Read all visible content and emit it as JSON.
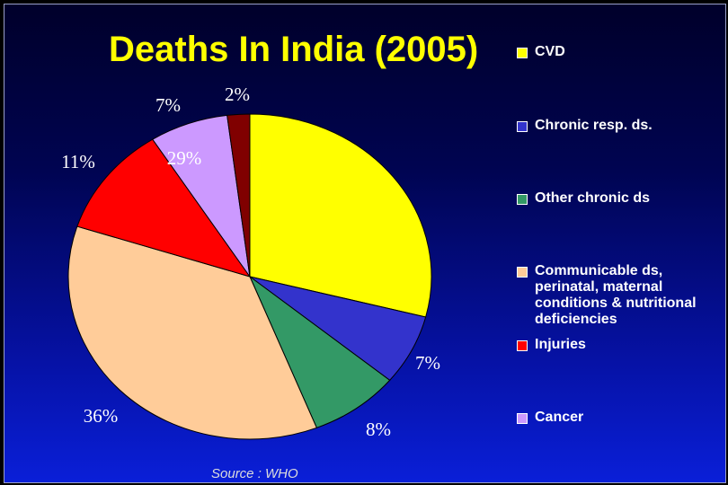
{
  "chart_data": {
    "type": "pie",
    "title": "Deaths In India (2005)",
    "source": "Source : WHO",
    "legend_position": "right",
    "slices": [
      {
        "name": "CVD",
        "value": 29,
        "label": "29%",
        "color": "#ffff00"
      },
      {
        "name": "Chronic resp. ds.",
        "value": 7,
        "label": "7%",
        "color": "#3333cc"
      },
      {
        "name": "Other chronic ds",
        "value": 8,
        "label": "8%",
        "color": "#339966"
      },
      {
        "name": "Communicable ds, perinatal, maternal conditions & nutritional deficiencies",
        "value": 36,
        "label": "36%",
        "color": "#ffcc99"
      },
      {
        "name": "Injuries",
        "value": 11,
        "label": "11%",
        "color": "#ff0000"
      },
      {
        "name": "Cancer",
        "value": 7,
        "label": "7%",
        "color": "#cc99ff"
      },
      {
        "name": "",
        "value": 2,
        "label": "2%",
        "color": "#800000"
      }
    ]
  }
}
